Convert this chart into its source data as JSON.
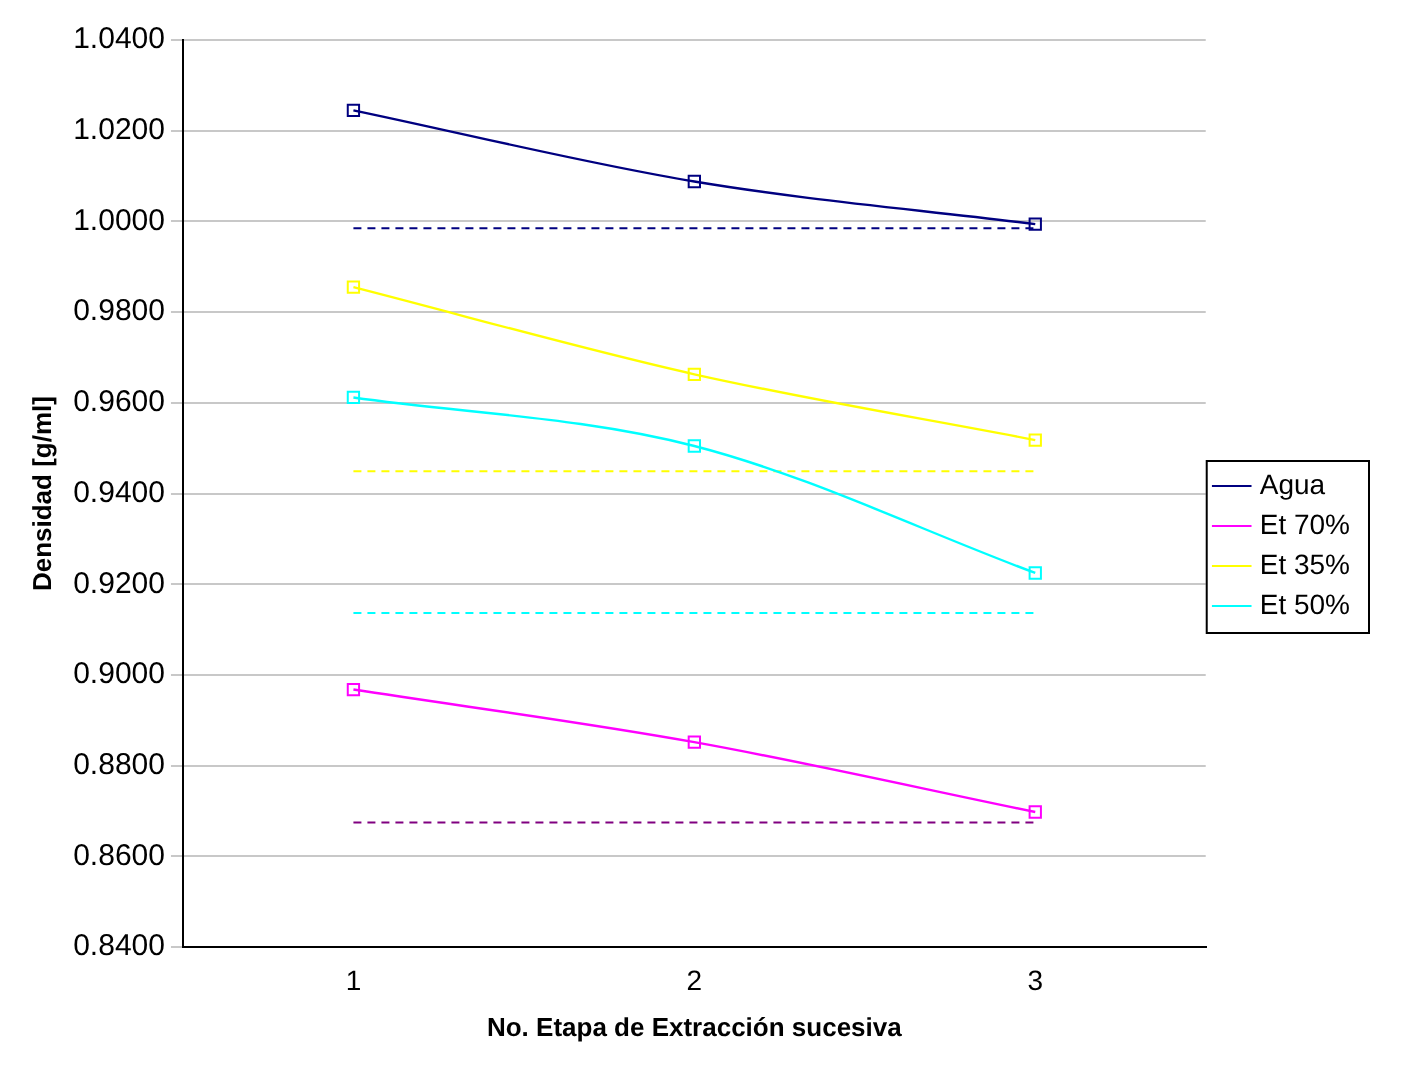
{
  "chart_data": {
    "type": "line",
    "xlabel": "No. Etapa de Extracción sucesiva",
    "ylabel": "Densidad [g/ml]",
    "categories": [
      "1",
      "2",
      "3"
    ],
    "series": [
      {
        "name": "Agua",
        "color": "#000080",
        "values": [
          1.0245,
          1.0088,
          0.9994
        ]
      },
      {
        "name": "Et 70%",
        "color": "#ff00ff",
        "values": [
          0.8968,
          0.8852,
          0.8698
        ]
      },
      {
        "name": "Et 35%",
        "color": "#ffff00",
        "values": [
          0.9855,
          0.9663,
          0.9518
        ]
      },
      {
        "name": "Et 50%",
        "color": "#00ffff",
        "values": [
          0.9612,
          0.9505,
          0.9225
        ]
      }
    ],
    "ref_lines": [
      {
        "axis": "y",
        "value": 0.9985,
        "color": "#000080",
        "line_style": "dashed"
      },
      {
        "axis": "y",
        "value": 0.9449,
        "color": "#ffff00",
        "line_style": "dashed"
      },
      {
        "axis": "y",
        "value": 0.9137,
        "color": "#00ffff",
        "line_style": "dashed"
      },
      {
        "axis": "y",
        "value": 0.8675,
        "color": "#800080",
        "line_style": "dashed"
      }
    ],
    "ylim": [
      0.84,
      1.04
    ],
    "yticks": [
      {
        "value": 0.84,
        "label": "0.8400"
      },
      {
        "value": 0.86,
        "label": "0.8600"
      },
      {
        "value": 0.88,
        "label": "0.8800"
      },
      {
        "value": 0.9,
        "label": "0.9000"
      },
      {
        "value": 0.92,
        "label": "0.9200"
      },
      {
        "value": 0.94,
        "label": "0.9400"
      },
      {
        "value": 0.96,
        "label": "0.9600"
      },
      {
        "value": 0.98,
        "label": "0.9800"
      },
      {
        "value": 1.0,
        "label": "1.0000"
      },
      {
        "value": 1.02,
        "label": "1.0200"
      },
      {
        "value": 1.04,
        "label": "1.0400"
      }
    ],
    "grid": "y",
    "legend": "right",
    "marker": "square",
    "line_style": "solid"
  }
}
